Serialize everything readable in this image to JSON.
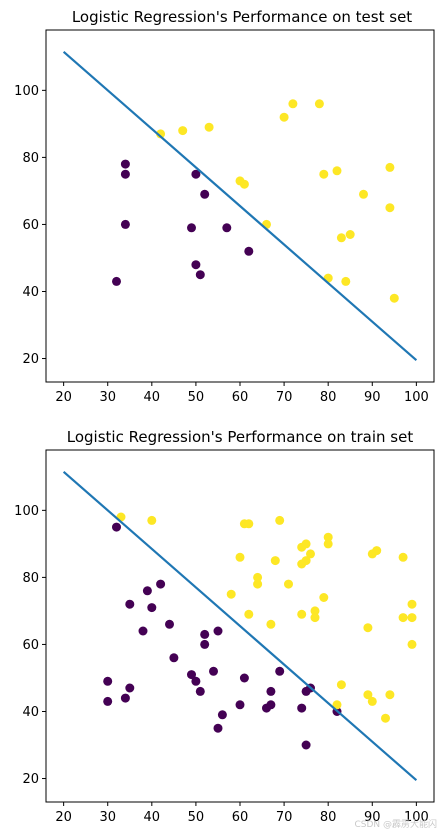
{
  "watermark": "CSDN @霹雳大能闪",
  "colors": {
    "class0": "#440154",
    "class1": "#fde725",
    "line": "#1f77b4",
    "axis": "#000000"
  },
  "chart_data": [
    {
      "type": "scatter",
      "title": "Logistic Regression's Performance on test set",
      "xlim": [
        16,
        104
      ],
      "ylim": [
        13,
        118
      ],
      "xticks": [
        20,
        30,
        40,
        50,
        60,
        70,
        80,
        90,
        100
      ],
      "yticks": [
        20,
        40,
        60,
        80,
        100
      ],
      "grid": false,
      "series": [
        {
          "class": 0,
          "color": "#440154",
          "points": [
            [
              32,
              43
            ],
            [
              34,
              78
            ],
            [
              34,
              75
            ],
            [
              34,
              60
            ],
            [
              49,
              59
            ],
            [
              50,
              75
            ],
            [
              50,
              48
            ],
            [
              51,
              45
            ],
            [
              52,
              69
            ],
            [
              57,
              59
            ],
            [
              62,
              52
            ]
          ]
        },
        {
          "class": 1,
          "color": "#fde725",
          "points": [
            [
              42,
              87
            ],
            [
              47,
              88
            ],
            [
              53,
              89
            ],
            [
              60,
              73
            ],
            [
              61,
              72
            ],
            [
              66,
              60
            ],
            [
              70,
              92
            ],
            [
              72,
              96
            ],
            [
              78,
              96
            ],
            [
              79,
              75
            ],
            [
              80,
              44
            ],
            [
              82,
              76
            ],
            [
              83,
              56
            ],
            [
              84,
              43
            ],
            [
              85,
              57
            ],
            [
              88,
              69
            ],
            [
              94,
              77
            ],
            [
              94,
              65
            ],
            [
              95,
              38
            ]
          ]
        }
      ],
      "boundary": [
        [
          20,
          111.5
        ],
        [
          100,
          19.5
        ]
      ]
    },
    {
      "type": "scatter",
      "title": "Logistic Regression's Performance on train set",
      "xlim": [
        16,
        104
      ],
      "ylim": [
        13,
        118
      ],
      "xticks": [
        20,
        30,
        40,
        50,
        60,
        70,
        80,
        90,
        100
      ],
      "yticks": [
        20,
        40,
        60,
        80,
        100
      ],
      "grid": false,
      "series": [
        {
          "class": 0,
          "color": "#440154",
          "points": [
            [
              30,
              49
            ],
            [
              30,
              43
            ],
            [
              32,
              95
            ],
            [
              34,
              44
            ],
            [
              35,
              72
            ],
            [
              35,
              47
            ],
            [
              38,
              64
            ],
            [
              39,
              76
            ],
            [
              40,
              71
            ],
            [
              42,
              78
            ],
            [
              44,
              66
            ],
            [
              45,
              56
            ],
            [
              49,
              51
            ],
            [
              50,
              49
            ],
            [
              51,
              46
            ],
            [
              52,
              63
            ],
            [
              52,
              60
            ],
            [
              54,
              52
            ],
            [
              55,
              64
            ],
            [
              55,
              35
            ],
            [
              56,
              39
            ],
            [
              60,
              42
            ],
            [
              61,
              50
            ],
            [
              66,
              41
            ],
            [
              67,
              46
            ],
            [
              67,
              42
            ],
            [
              69,
              52
            ],
            [
              74,
              41
            ],
            [
              75,
              46
            ],
            [
              75,
              30
            ],
            [
              76,
              47
            ],
            [
              82,
              40
            ]
          ]
        },
        {
          "class": 1,
          "color": "#fde725",
          "points": [
            [
              33,
              98
            ],
            [
              40,
              97
            ],
            [
              58,
              75
            ],
            [
              60,
              86
            ],
            [
              61,
              96
            ],
            [
              62,
              96
            ],
            [
              62,
              69
            ],
            [
              64,
              80
            ],
            [
              64,
              78
            ],
            [
              67,
              66
            ],
            [
              68,
              85
            ],
            [
              69,
              97
            ],
            [
              71,
              78
            ],
            [
              74,
              69
            ],
            [
              74,
              89
            ],
            [
              74,
              84
            ],
            [
              75,
              90
            ],
            [
              75,
              85
            ],
            [
              76,
              87
            ],
            [
              77,
              70
            ],
            [
              77,
              68
            ],
            [
              79,
              74
            ],
            [
              80,
              92
            ],
            [
              80,
              90
            ],
            [
              82,
              42
            ],
            [
              83,
              48
            ],
            [
              89,
              65
            ],
            [
              89,
              45
            ],
            [
              90,
              87
            ],
            [
              90,
              43
            ],
            [
              91,
              88
            ],
            [
              93,
              38
            ],
            [
              94,
              45
            ],
            [
              97,
              86
            ],
            [
              97,
              68
            ],
            [
              99,
              72
            ],
            [
              99,
              68
            ],
            [
              99,
              60
            ]
          ]
        }
      ],
      "boundary": [
        [
          20,
          111.5
        ],
        [
          100,
          19.5
        ]
      ]
    }
  ]
}
